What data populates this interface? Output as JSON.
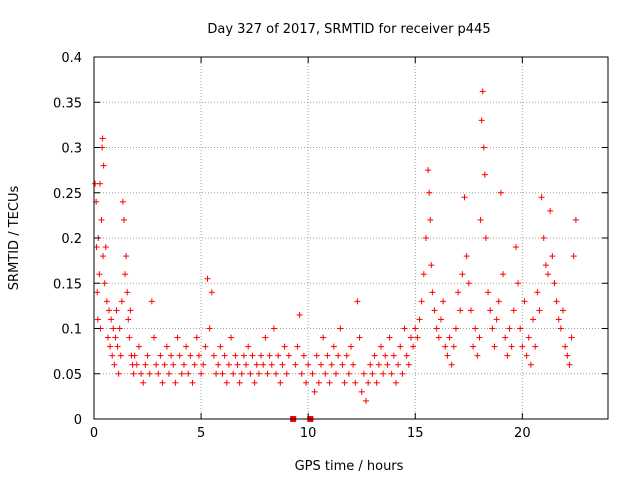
{
  "chart_data": {
    "type": "scatter",
    "title": "Day 327 of 2017, SRMTID for receiver p445",
    "xlabel": "GPS time / hours",
    "ylabel": "SRMTID / TECUs",
    "xlim": [
      0,
      24
    ],
    "ylim": [
      0,
      0.4
    ],
    "xticks": [
      0,
      5,
      10,
      15,
      20
    ],
    "xtick_labels": [
      "0",
      "5",
      "10",
      "15",
      "20"
    ],
    "yticks": [
      0,
      0.05,
      0.1,
      0.15,
      0.2,
      0.25,
      0.3,
      0.35,
      0.4
    ],
    "ytick_labels": [
      "0",
      "0.05",
      "0.1",
      "0.15",
      "0.2",
      "0.25",
      "0.3",
      "0.35",
      "0.4"
    ],
    "grid": true,
    "marker": "plus",
    "color": "#ff0000",
    "zero_markers": [
      {
        "x": 9.3,
        "y": 0
      },
      {
        "x": 10.1,
        "y": 0
      }
    ],
    "series": [
      {
        "name": "SRMTID p445",
        "points": [
          [
            0.05,
            0.26
          ],
          [
            0.1,
            0.24
          ],
          [
            0.12,
            0.19
          ],
          [
            0.15,
            0.14
          ],
          [
            0.18,
            0.11
          ],
          [
            0.2,
            0.2
          ],
          [
            0.25,
            0.16
          ],
          [
            0.28,
            0.26
          ],
          [
            0.3,
            0.1
          ],
          [
            0.35,
            0.22
          ],
          [
            0.38,
            0.3
          ],
          [
            0.4,
            0.31
          ],
          [
            0.42,
            0.18
          ],
          [
            0.45,
            0.28
          ],
          [
            0.5,
            0.15
          ],
          [
            0.55,
            0.19
          ],
          [
            0.6,
            0.13
          ],
          [
            0.65,
            0.09
          ],
          [
            0.7,
            0.12
          ],
          [
            0.75,
            0.08
          ],
          [
            0.8,
            0.11
          ],
          [
            0.85,
            0.07
          ],
          [
            0.9,
            0.1
          ],
          [
            0.95,
            0.06
          ],
          [
            1.0,
            0.09
          ],
          [
            1.05,
            0.12
          ],
          [
            1.1,
            0.08
          ],
          [
            1.15,
            0.05
          ],
          [
            1.2,
            0.1
          ],
          [
            1.25,
            0.07
          ],
          [
            1.3,
            0.13
          ],
          [
            1.35,
            0.24
          ],
          [
            1.4,
            0.22
          ],
          [
            1.45,
            0.16
          ],
          [
            1.5,
            0.18
          ],
          [
            1.55,
            0.14
          ],
          [
            1.6,
            0.11
          ],
          [
            1.65,
            0.09
          ],
          [
            1.7,
            0.12
          ],
          [
            1.75,
            0.07
          ],
          [
            1.8,
            0.06
          ],
          [
            1.85,
            0.05
          ],
          [
            1.9,
            0.07
          ],
          [
            2.0,
            0.06
          ],
          [
            2.1,
            0.08
          ],
          [
            2.2,
            0.05
          ],
          [
            2.3,
            0.04
          ],
          [
            2.4,
            0.06
          ],
          [
            2.5,
            0.07
          ],
          [
            2.6,
            0.05
          ],
          [
            2.7,
            0.13
          ],
          [
            2.8,
            0.09
          ],
          [
            2.9,
            0.06
          ],
          [
            3.0,
            0.05
          ],
          [
            3.1,
            0.07
          ],
          [
            3.2,
            0.04
          ],
          [
            3.3,
            0.06
          ],
          [
            3.4,
            0.08
          ],
          [
            3.5,
            0.05
          ],
          [
            3.6,
            0.07
          ],
          [
            3.7,
            0.06
          ],
          [
            3.8,
            0.04
          ],
          [
            3.9,
            0.09
          ],
          [
            4.0,
            0.07
          ],
          [
            4.1,
            0.05
          ],
          [
            4.2,
            0.06
          ],
          [
            4.3,
            0.08
          ],
          [
            4.4,
            0.05
          ],
          [
            4.5,
            0.07
          ],
          [
            4.6,
            0.04
          ],
          [
            4.7,
            0.06
          ],
          [
            4.8,
            0.09
          ],
          [
            4.9,
            0.07
          ],
          [
            5.0,
            0.05
          ],
          [
            5.1,
            0.06
          ],
          [
            5.2,
            0.08
          ],
          [
            5.3,
            0.155
          ],
          [
            5.4,
            0.1
          ],
          [
            5.5,
            0.14
          ],
          [
            5.6,
            0.07
          ],
          [
            5.7,
            0.05
          ],
          [
            5.8,
            0.06
          ],
          [
            5.9,
            0.08
          ],
          [
            6.0,
            0.05
          ],
          [
            6.1,
            0.07
          ],
          [
            6.2,
            0.04
          ],
          [
            6.3,
            0.06
          ],
          [
            6.4,
            0.09
          ],
          [
            6.5,
            0.05
          ],
          [
            6.6,
            0.07
          ],
          [
            6.7,
            0.06
          ],
          [
            6.8,
            0.04
          ],
          [
            6.9,
            0.05
          ],
          [
            7.0,
            0.07
          ],
          [
            7.1,
            0.06
          ],
          [
            7.2,
            0.08
          ],
          [
            7.3,
            0.05
          ],
          [
            7.4,
            0.07
          ],
          [
            7.5,
            0.04
          ],
          [
            7.6,
            0.06
          ],
          [
            7.7,
            0.05
          ],
          [
            7.8,
            0.07
          ],
          [
            7.9,
            0.06
          ],
          [
            8.0,
            0.09
          ],
          [
            8.1,
            0.05
          ],
          [
            8.2,
            0.07
          ],
          [
            8.3,
            0.06
          ],
          [
            8.4,
            0.1
          ],
          [
            8.5,
            0.05
          ],
          [
            8.6,
            0.07
          ],
          [
            8.7,
            0.04
          ],
          [
            8.8,
            0.06
          ],
          [
            8.9,
            0.08
          ],
          [
            9.0,
            0.05
          ],
          [
            9.1,
            0.07
          ],
          [
            9.4,
            0.06
          ],
          [
            9.5,
            0.08
          ],
          [
            9.6,
            0.115
          ],
          [
            9.7,
            0.05
          ],
          [
            9.8,
            0.07
          ],
          [
            9.9,
            0.04
          ],
          [
            10.0,
            0.06
          ],
          [
            10.2,
            0.05
          ],
          [
            10.3,
            0.03
          ],
          [
            10.4,
            0.07
          ],
          [
            10.5,
            0.04
          ],
          [
            10.6,
            0.06
          ],
          [
            10.7,
            0.09
          ],
          [
            10.8,
            0.05
          ],
          [
            10.9,
            0.07
          ],
          [
            11.0,
            0.04
          ],
          [
            11.1,
            0.06
          ],
          [
            11.2,
            0.08
          ],
          [
            11.3,
            0.05
          ],
          [
            11.4,
            0.07
          ],
          [
            11.5,
            0.1
          ],
          [
            11.6,
            0.06
          ],
          [
            11.7,
            0.04
          ],
          [
            11.8,
            0.07
          ],
          [
            11.9,
            0.05
          ],
          [
            12.0,
            0.08
          ],
          [
            12.1,
            0.06
          ],
          [
            12.2,
            0.04
          ],
          [
            12.3,
            0.13
          ],
          [
            12.4,
            0.09
          ],
          [
            12.5,
            0.03
          ],
          [
            12.6,
            0.05
          ],
          [
            12.7,
            0.02
          ],
          [
            12.8,
            0.04
          ],
          [
            12.9,
            0.06
          ],
          [
            13.0,
            0.05
          ],
          [
            13.1,
            0.07
          ],
          [
            13.2,
            0.04
          ],
          [
            13.3,
            0.06
          ],
          [
            13.4,
            0.08
          ],
          [
            13.5,
            0.05
          ],
          [
            13.6,
            0.07
          ],
          [
            13.7,
            0.06
          ],
          [
            13.8,
            0.09
          ],
          [
            13.9,
            0.05
          ],
          [
            14.0,
            0.07
          ],
          [
            14.1,
            0.04
          ],
          [
            14.2,
            0.06
          ],
          [
            14.3,
            0.08
          ],
          [
            14.4,
            0.05
          ],
          [
            14.5,
            0.1
          ],
          [
            14.6,
            0.07
          ],
          [
            14.7,
            0.06
          ],
          [
            14.8,
            0.09
          ],
          [
            14.9,
            0.08
          ],
          [
            15.0,
            0.1
          ],
          [
            15.1,
            0.09
          ],
          [
            15.2,
            0.11
          ],
          [
            15.3,
            0.13
          ],
          [
            15.4,
            0.16
          ],
          [
            15.5,
            0.2
          ],
          [
            15.6,
            0.275
          ],
          [
            15.65,
            0.25
          ],
          [
            15.7,
            0.22
          ],
          [
            15.75,
            0.17
          ],
          [
            15.8,
            0.14
          ],
          [
            15.9,
            0.12
          ],
          [
            16.0,
            0.1
          ],
          [
            16.1,
            0.09
          ],
          [
            16.2,
            0.11
          ],
          [
            16.3,
            0.13
          ],
          [
            16.4,
            0.08
          ],
          [
            16.5,
            0.07
          ],
          [
            16.6,
            0.09
          ],
          [
            16.7,
            0.06
          ],
          [
            16.8,
            0.08
          ],
          [
            16.9,
            0.1
          ],
          [
            17.0,
            0.14
          ],
          [
            17.1,
            0.12
          ],
          [
            17.2,
            0.16
          ],
          [
            17.3,
            0.245
          ],
          [
            17.4,
            0.18
          ],
          [
            17.5,
            0.15
          ],
          [
            17.6,
            0.12
          ],
          [
            17.7,
            0.08
          ],
          [
            17.8,
            0.1
          ],
          [
            17.9,
            0.07
          ],
          [
            18.0,
            0.09
          ],
          [
            18.05,
            0.22
          ],
          [
            18.1,
            0.33
          ],
          [
            18.15,
            0.362
          ],
          [
            18.2,
            0.3
          ],
          [
            18.25,
            0.27
          ],
          [
            18.3,
            0.2
          ],
          [
            18.4,
            0.14
          ],
          [
            18.5,
            0.12
          ],
          [
            18.6,
            0.1
          ],
          [
            18.7,
            0.08
          ],
          [
            18.8,
            0.11
          ],
          [
            18.9,
            0.13
          ],
          [
            19.0,
            0.25
          ],
          [
            19.1,
            0.16
          ],
          [
            19.2,
            0.09
          ],
          [
            19.3,
            0.07
          ],
          [
            19.4,
            0.1
          ],
          [
            19.5,
            0.08
          ],
          [
            19.6,
            0.12
          ],
          [
            19.7,
            0.19
          ],
          [
            19.8,
            0.15
          ],
          [
            19.9,
            0.1
          ],
          [
            20.0,
            0.08
          ],
          [
            20.1,
            0.13
          ],
          [
            20.2,
            0.07
          ],
          [
            20.3,
            0.09
          ],
          [
            20.4,
            0.06
          ],
          [
            20.5,
            0.11
          ],
          [
            20.6,
            0.08
          ],
          [
            20.7,
            0.14
          ],
          [
            20.8,
            0.12
          ],
          [
            20.9,
            0.245
          ],
          [
            21.0,
            0.2
          ],
          [
            21.1,
            0.17
          ],
          [
            21.2,
            0.16
          ],
          [
            21.3,
            0.23
          ],
          [
            21.4,
            0.18
          ],
          [
            21.5,
            0.15
          ],
          [
            21.6,
            0.13
          ],
          [
            21.7,
            0.11
          ],
          [
            21.8,
            0.1
          ],
          [
            21.9,
            0.12
          ],
          [
            22.0,
            0.08
          ],
          [
            22.1,
            0.07
          ],
          [
            22.2,
            0.06
          ],
          [
            22.3,
            0.09
          ],
          [
            22.4,
            0.18
          ],
          [
            22.5,
            0.22
          ]
        ]
      }
    ]
  }
}
